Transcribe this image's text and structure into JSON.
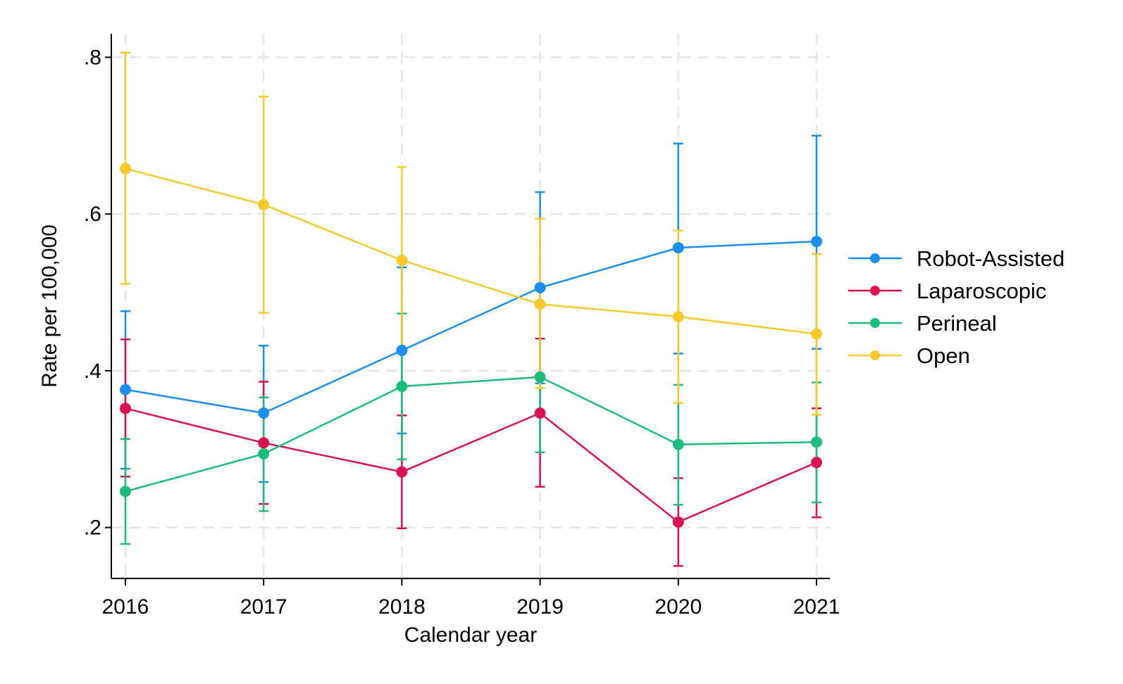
{
  "chart_data": {
    "type": "line",
    "xlabel": "Calendar year",
    "ylabel": "Rate per 100,000",
    "x": [
      2016,
      2017,
      2018,
      2019,
      2020,
      2021
    ],
    "x_tick_labels": [
      "2016",
      "2017",
      "2018",
      "2019",
      "2020",
      "2021"
    ],
    "y_ticks": [
      0.2,
      0.4,
      0.6,
      0.8
    ],
    "y_tick_labels": [
      ".2",
      ".4",
      ".6",
      ".8"
    ],
    "ylim": [
      0.135,
      0.83
    ],
    "xlim": [
      2015.9,
      2021.1
    ],
    "grid": true,
    "legend_position": "right",
    "error_bars": true,
    "series": [
      {
        "name": "Robot-Assisted",
        "color": "#1a8ff0",
        "values": [
          0.376,
          0.346,
          0.426,
          0.506,
          0.557,
          0.565
        ],
        "lower": [
          0.275,
          0.258,
          0.32,
          0.384,
          0.422,
          0.428
        ],
        "upper": [
          0.476,
          0.432,
          0.532,
          0.628,
          0.69,
          0.7
        ]
      },
      {
        "name": "Laparoscopic",
        "color": "#d9134f",
        "values": [
          0.352,
          0.308,
          0.271,
          0.346,
          0.207,
          0.283
        ],
        "lower": [
          0.265,
          0.23,
          0.199,
          0.252,
          0.151,
          0.213
        ],
        "upper": [
          0.44,
          0.386,
          0.343,
          0.441,
          0.263,
          0.352
        ]
      },
      {
        "name": "Perineal",
        "color": "#1cbc7c",
        "values": [
          0.246,
          0.294,
          0.38,
          0.392,
          0.306,
          0.309
        ],
        "lower": [
          0.179,
          0.221,
          0.287,
          0.296,
          0.229,
          0.232
        ],
        "upper": [
          0.313,
          0.366,
          0.473,
          0.487,
          0.382,
          0.385
        ]
      },
      {
        "name": "Open",
        "color": "#f7c92b",
        "values": [
          0.658,
          0.612,
          0.541,
          0.485,
          0.469,
          0.447
        ],
        "lower": [
          0.511,
          0.474,
          0.423,
          0.378,
          0.359,
          0.344
        ],
        "upper": [
          0.806,
          0.75,
          0.66,
          0.594,
          0.579,
          0.549
        ]
      }
    ]
  }
}
